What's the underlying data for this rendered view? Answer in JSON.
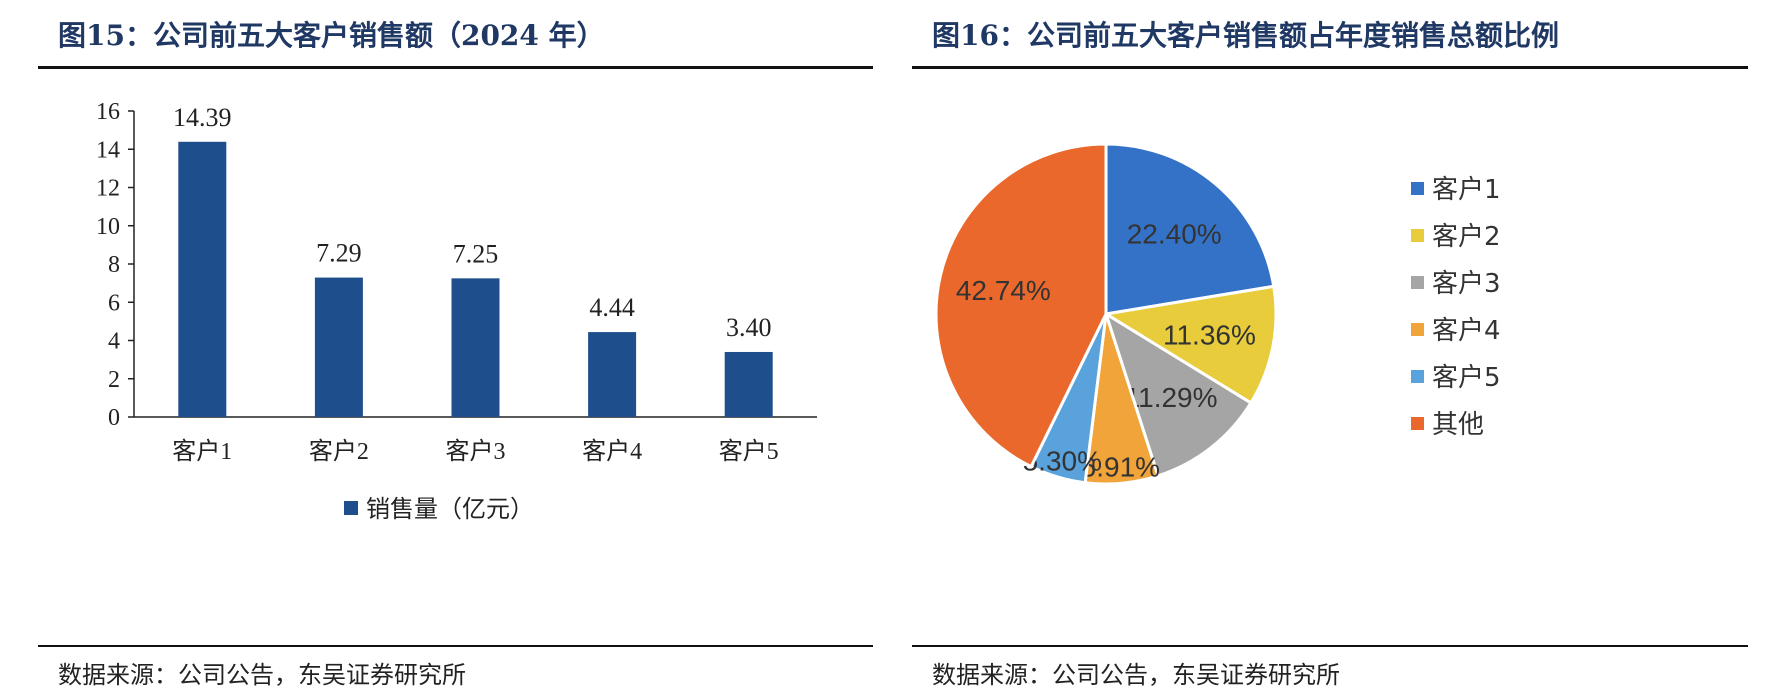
{
  "left": {
    "title": "图15：公司前五大客户销售额（2024 年）",
    "source": "数据来源：公司公告，东吴证券研究所"
  },
  "right": {
    "title": "图16：公司前五大客户销售额占年度销售总额比例",
    "source": "数据来源：公司公告，东吴证券研究所"
  },
  "chart_data": [
    {
      "type": "bar",
      "title": "图15：公司前五大客户销售额（2024 年）",
      "categories": [
        "客户1",
        "客户2",
        "客户3",
        "客户4",
        "客户5"
      ],
      "series": [
        {
          "name": "销售量（亿元）",
          "values": [
            14.39,
            7.29,
            7.25,
            4.44,
            3.4
          ],
          "labels": [
            "14.39",
            "7.29",
            "7.25",
            "4.44",
            "3.40"
          ]
        }
      ],
      "ylim": [
        0,
        16
      ],
      "yticks": [
        0,
        2,
        4,
        6,
        8,
        10,
        12,
        14,
        16
      ],
      "xlabel": "",
      "ylabel": "",
      "grid": false,
      "legend": "bottom",
      "colors": {
        "bar": "#1f4e8c"
      }
    },
    {
      "type": "pie",
      "title": "图16：公司前五大客户销售额占年度销售总额比例",
      "slices": [
        {
          "label": "客户1",
          "value": 22.4,
          "text": "22.40%",
          "color": "#3472c8"
        },
        {
          "label": "客户2",
          "value": 11.36,
          "text": "11.36%",
          "color": "#e8cc3c"
        },
        {
          "label": "客户3",
          "value": 11.29,
          "text": "11.29%",
          "color": "#a5a5a5"
        },
        {
          "label": "客户4",
          "value": 6.91,
          "text": "6.91%",
          "color": "#f0a43a"
        },
        {
          "label": "客户5",
          "value": 5.3,
          "text": "5.30%",
          "color": "#5aa2dc"
        },
        {
          "label": "其他",
          "value": 42.74,
          "text": "42.74%",
          "color": "#ea682c"
        }
      ],
      "legend": "right"
    }
  ]
}
